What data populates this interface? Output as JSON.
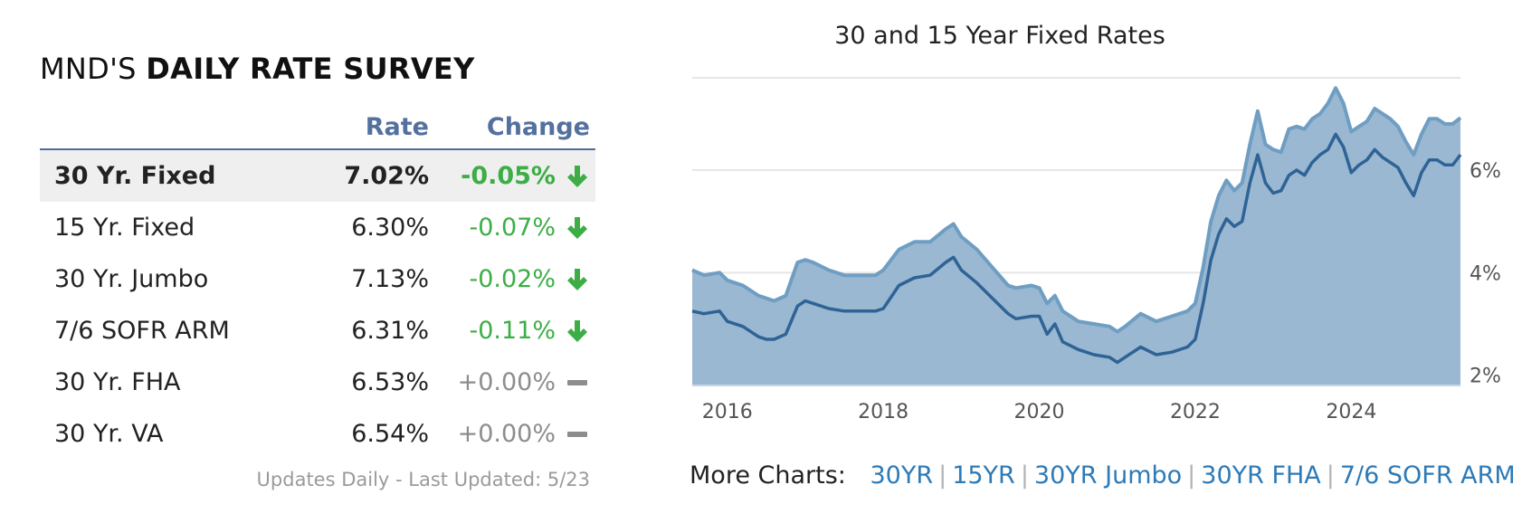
{
  "survey": {
    "title_prefix": "MND'S ",
    "title_bold": "DAILY RATE SURVEY",
    "col_rate": "Rate",
    "col_change": "Change",
    "rows": [
      {
        "name": "30 Yr. Fixed",
        "rate": "7.02%",
        "change": "-0.05%",
        "trend": "down"
      },
      {
        "name": "15 Yr. Fixed",
        "rate": "6.30%",
        "change": "-0.07%",
        "trend": "down"
      },
      {
        "name": "30 Yr. Jumbo",
        "rate": "7.13%",
        "change": "-0.02%",
        "trend": "down"
      },
      {
        "name": "7/6 SOFR ARM",
        "rate": "6.31%",
        "change": "-0.11%",
        "trend": "down"
      },
      {
        "name": "30 Yr. FHA",
        "rate": "6.53%",
        "change": "+0.00%",
        "trend": "flat"
      },
      {
        "name": "30 Yr. VA",
        "rate": "6.54%",
        "change": "+0.00%",
        "trend": "flat"
      }
    ],
    "updated": "Updates Daily - Last Updated: 5/23"
  },
  "colors": {
    "accent": "#54709f",
    "positive_change": "#3cae45",
    "flat_change": "#8d8d8d",
    "series_30yr_line": "#6f9ec3",
    "series_15yr_line": "#2f6396",
    "area_fill": "#9ab8d1",
    "link": "#2d7ab7"
  },
  "chart_data": {
    "type": "area",
    "title": "30 and 15 Year Fixed Rates",
    "xlabel": "",
    "ylabel": "",
    "x_ticks": [
      "2016",
      "2018",
      "2020",
      "2022",
      "2024"
    ],
    "y_ticks": [
      "2%",
      "4%",
      "6%"
    ],
    "xlim": [
      2015.55,
      2025.4
    ],
    "ylim": [
      1.8,
      7.8
    ],
    "grid": true,
    "y_axis_side": "right",
    "x": [
      2015.55,
      2015.7,
      2015.9,
      2016.0,
      2016.2,
      2016.4,
      2016.5,
      2016.6,
      2016.75,
      2016.9,
      2017.0,
      2017.1,
      2017.3,
      2017.5,
      2017.7,
      2017.9,
      2018.0,
      2018.2,
      2018.4,
      2018.6,
      2018.8,
      2018.9,
      2019.0,
      2019.2,
      2019.4,
      2019.6,
      2019.7,
      2019.9,
      2020.0,
      2020.1,
      2020.2,
      2020.3,
      2020.5,
      2020.7,
      2020.9,
      2021.0,
      2021.1,
      2021.3,
      2021.5,
      2021.7,
      2021.9,
      2022.0,
      2022.1,
      2022.2,
      2022.3,
      2022.4,
      2022.5,
      2022.6,
      2022.7,
      2022.8,
      2022.9,
      2023.0,
      2023.1,
      2023.2,
      2023.3,
      2023.4,
      2023.5,
      2023.6,
      2023.7,
      2023.8,
      2023.9,
      2024.0,
      2024.1,
      2024.2,
      2024.3,
      2024.4,
      2024.5,
      2024.6,
      2024.7,
      2024.8,
      2024.9,
      2025.0,
      2025.1,
      2025.2,
      2025.3,
      2025.4
    ],
    "series": [
      {
        "name": "30YR",
        "values": [
          4.05,
          3.95,
          4.0,
          3.85,
          3.75,
          3.55,
          3.5,
          3.45,
          3.55,
          4.2,
          4.25,
          4.2,
          4.05,
          3.95,
          3.95,
          3.95,
          4.05,
          4.45,
          4.6,
          4.6,
          4.85,
          4.95,
          4.7,
          4.45,
          4.1,
          3.75,
          3.7,
          3.75,
          3.7,
          3.4,
          3.55,
          3.25,
          3.05,
          3.0,
          2.95,
          2.85,
          2.95,
          3.2,
          3.05,
          3.15,
          3.25,
          3.4,
          4.1,
          5.0,
          5.5,
          5.8,
          5.6,
          5.75,
          6.5,
          7.15,
          6.5,
          6.4,
          6.35,
          6.8,
          6.85,
          6.8,
          7.0,
          7.1,
          7.3,
          7.6,
          7.3,
          6.75,
          6.85,
          6.95,
          7.2,
          7.1,
          7.0,
          6.85,
          6.55,
          6.3,
          6.7,
          7.0,
          7.0,
          6.9,
          6.9,
          7.02
        ]
      },
      {
        "name": "15YR",
        "values": [
          3.25,
          3.2,
          3.25,
          3.05,
          2.95,
          2.75,
          2.7,
          2.7,
          2.8,
          3.35,
          3.45,
          3.4,
          3.3,
          3.25,
          3.25,
          3.25,
          3.3,
          3.75,
          3.9,
          3.95,
          4.2,
          4.3,
          4.05,
          3.8,
          3.5,
          3.2,
          3.1,
          3.15,
          3.15,
          2.8,
          3.0,
          2.65,
          2.5,
          2.4,
          2.35,
          2.25,
          2.35,
          2.55,
          2.4,
          2.45,
          2.55,
          2.7,
          3.4,
          4.25,
          4.75,
          5.05,
          4.9,
          5.0,
          5.75,
          6.3,
          5.75,
          5.55,
          5.6,
          5.9,
          6.0,
          5.9,
          6.15,
          6.3,
          6.4,
          6.7,
          6.45,
          5.95,
          6.1,
          6.2,
          6.4,
          6.25,
          6.15,
          6.05,
          5.75,
          5.5,
          5.95,
          6.2,
          6.2,
          6.1,
          6.1,
          6.3
        ]
      }
    ]
  },
  "more_charts": {
    "label": "More Charts:",
    "links": [
      "30YR",
      "15YR",
      "30YR Jumbo",
      "30YR FHA",
      "7/6 SOFR ARM"
    ]
  }
}
